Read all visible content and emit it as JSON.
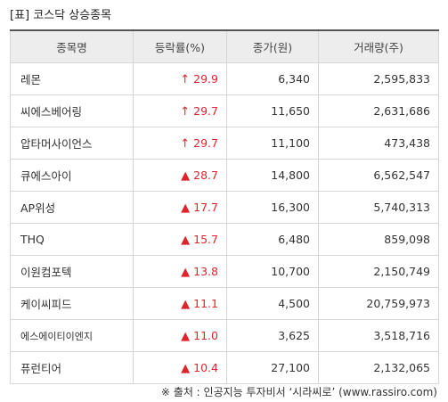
{
  "caption": "[표] 코스닥 상승종목",
  "columns": [
    "종목명",
    "등락률(%)",
    "종가(원)",
    "거래량(주)"
  ],
  "rows": [
    {
      "name": "레몬",
      "marker": "↑",
      "rate": "29.9",
      "price": "6,340",
      "volume": "2,595,833"
    },
    {
      "name": "씨에스베어링",
      "marker": "↑",
      "rate": "29.7",
      "price": "11,650",
      "volume": "2,631,686"
    },
    {
      "name": "압타머사이언스",
      "marker": "↑",
      "rate": "29.7",
      "price": "11,100",
      "volume": "473,438"
    },
    {
      "name": "큐에스아이",
      "marker": "▲",
      "rate": "28.7",
      "price": "14,800",
      "volume": "6,562,547"
    },
    {
      "name": "AP위성",
      "marker": "▲",
      "rate": "17.7",
      "price": "16,300",
      "volume": "5,740,313"
    },
    {
      "name": "THQ",
      "marker": "▲",
      "rate": "15.7",
      "price": "6,480",
      "volume": "859,098"
    },
    {
      "name": "이원컴포텍",
      "marker": "▲",
      "rate": "13.8",
      "price": "10,700",
      "volume": "2,150,749"
    },
    {
      "name": "케이씨피드",
      "marker": "▲",
      "rate": "11.1",
      "price": "4,500",
      "volume": "20,759,973"
    },
    {
      "name": "에스에이티이엔지",
      "marker": "▲",
      "rate": "11.0",
      "price": "3,625",
      "volume": "3,518,716"
    },
    {
      "name": "퓨런티어",
      "marker": "▲",
      "rate": "10.4",
      "price": "27,100",
      "volume": "2,132,065"
    }
  ],
  "source": "※ 출처 : 인공지능 투자비서 ‘시라씨로’ (www.rassiro.com)",
  "colors": {
    "up": "#e0242b",
    "header_bg": "#ededed",
    "border": "#d6d6d6"
  }
}
